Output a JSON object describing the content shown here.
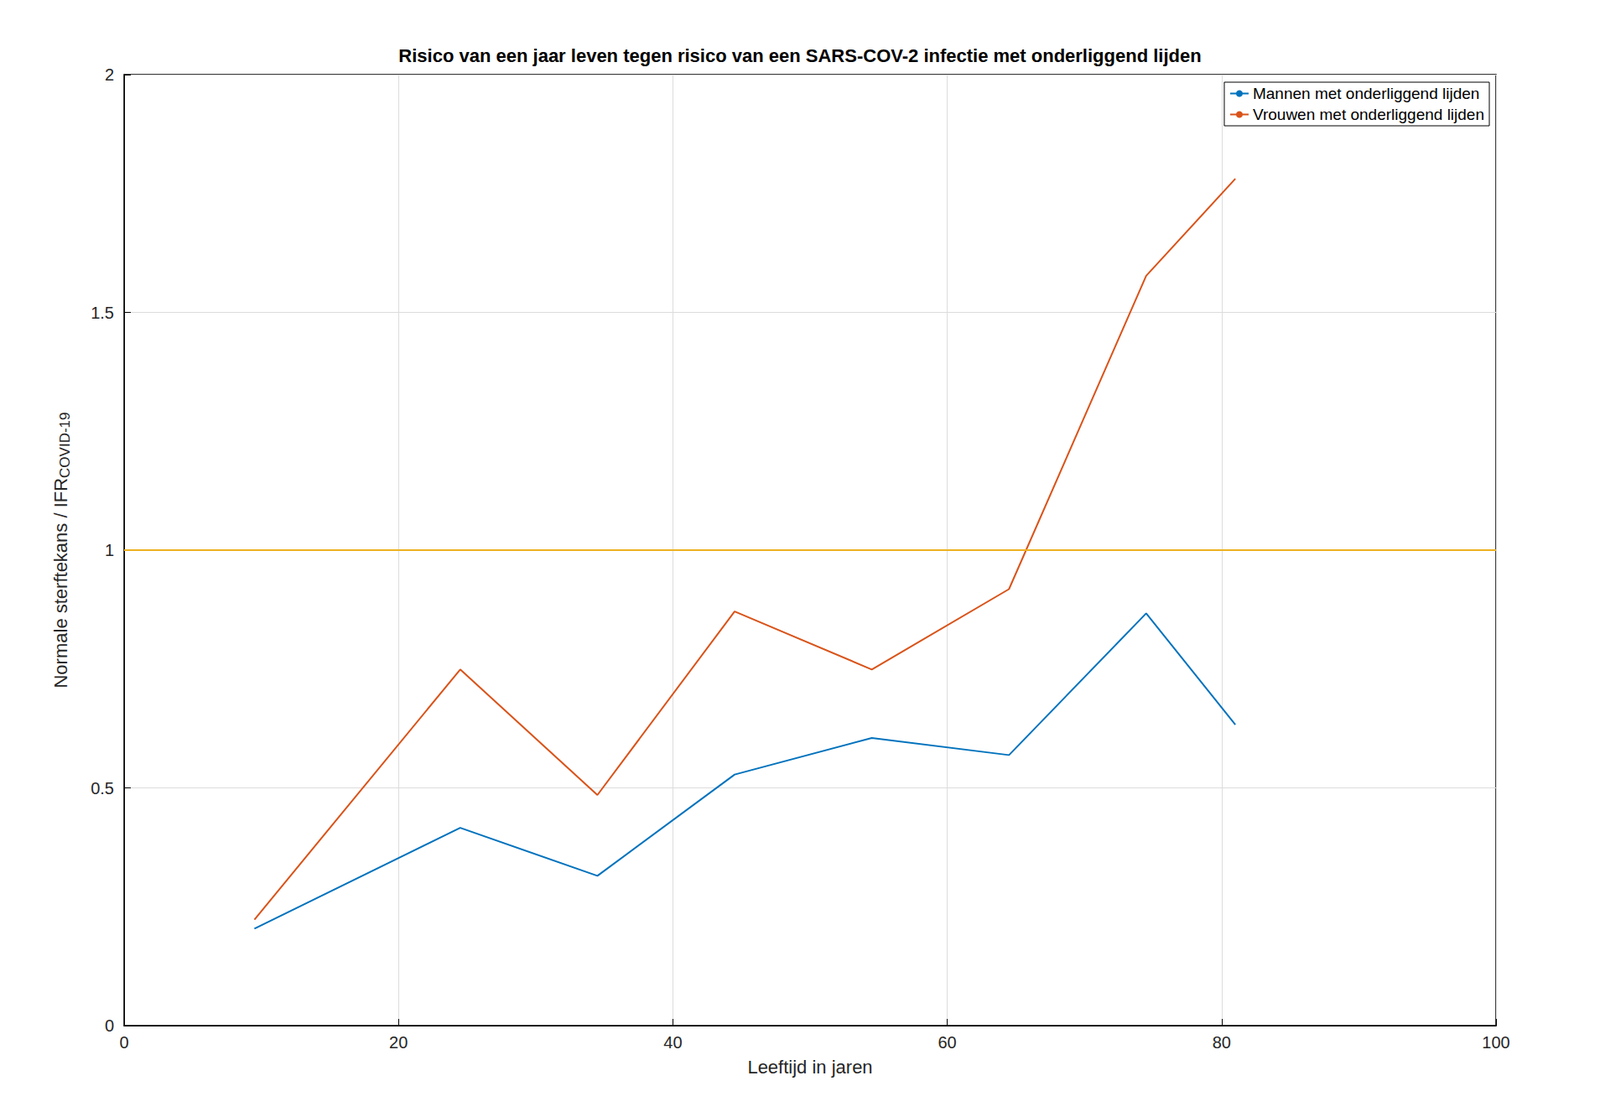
{
  "chart_data": {
    "type": "line",
    "title": "Risico van een jaar leven tegen risico van een SARS-COV-2 infectie met onderliggend lijden",
    "x_label": "Leeftijd in jaren",
    "y_label": "Normale sterftekans / IFR",
    "y_label_subscript": "COVID-19",
    "x": [
      9.5,
      24.5,
      34.5,
      44.5,
      54.5,
      64.5,
      74.5,
      81
    ],
    "series": [
      {
        "name": "Mannen met onderliggend lijden",
        "color": "#0072bd",
        "values": [
          0.204,
          0.416,
          0.315,
          0.528,
          0.605,
          0.569,
          0.867,
          0.633
        ]
      },
      {
        "name": "Vrouwen met onderliggend lijden",
        "color": "#d95319",
        "values": [
          0.223,
          0.749,
          0.485,
          0.871,
          0.749,
          0.918,
          1.577,
          1.781
        ]
      }
    ],
    "reference_line": {
      "y": 1,
      "color": "#edb120"
    },
    "xlim": [
      0,
      100
    ],
    "xticks": [
      0,
      20,
      40,
      60,
      80,
      100
    ],
    "ylim": [
      0,
      2
    ],
    "yticks": [
      0,
      0.5,
      1,
      1.5,
      2
    ],
    "grid": true,
    "legend": "upper right"
  }
}
